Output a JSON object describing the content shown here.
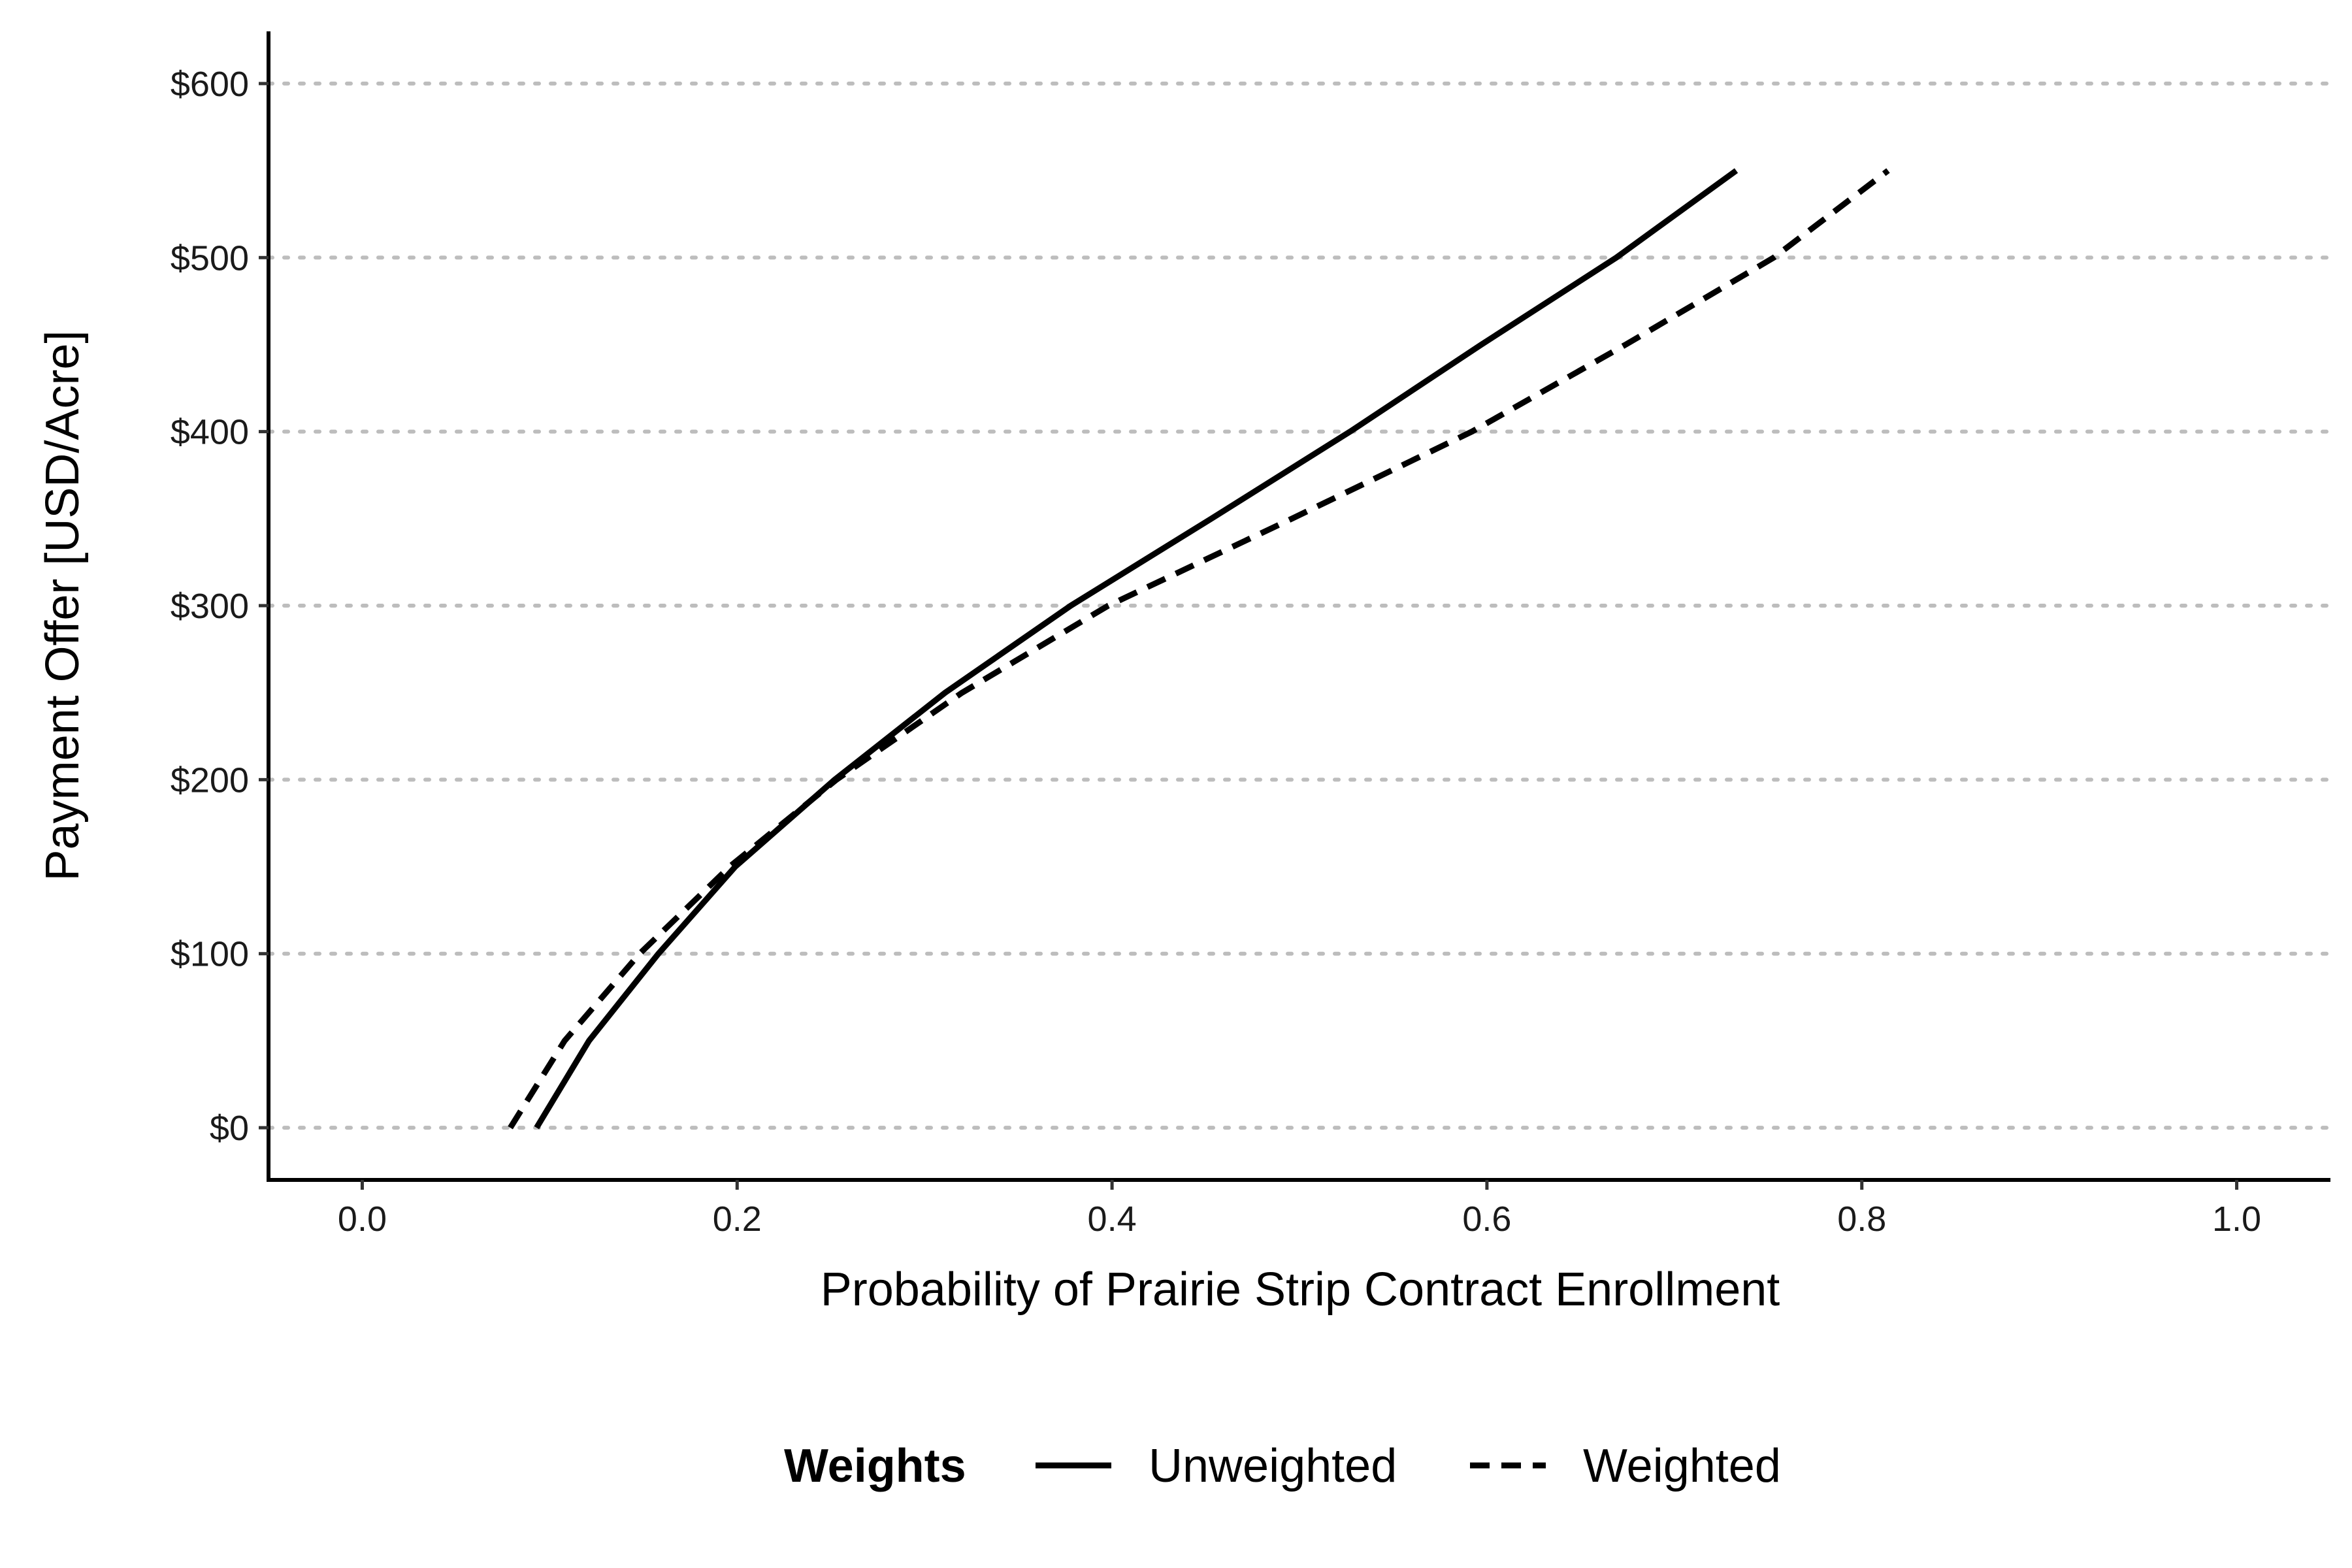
{
  "chart_data": {
    "type": "line",
    "xlabel": "Probability of Prairie Strip Contract Enrollment",
    "ylabel": "Payment Offer [USD/Acre]",
    "xlim": [
      -0.05,
      1.05
    ],
    "ylim": [
      -30,
      630
    ],
    "x_ticks": [
      0.0,
      0.2,
      0.4,
      0.6,
      0.8,
      1.0
    ],
    "x_tick_labels": [
      "0.0",
      "0.2",
      "0.4",
      "0.6",
      "0.8",
      "1.0"
    ],
    "y_ticks": [
      0,
      100,
      200,
      300,
      400,
      500,
      600
    ],
    "y_tick_labels": [
      "$0",
      "$100",
      "$200",
      "$300",
      "$400",
      "$500",
      "$600"
    ],
    "grid": "horizontal dotted",
    "legend": {
      "title": "Weights",
      "position": "bottom",
      "entries": [
        {
          "label": "Unweighted",
          "line_style": "solid"
        },
        {
          "label": "Weighted",
          "line_style": "dashed"
        }
      ]
    },
    "series": [
      {
        "name": "Unweighted",
        "line_style": "solid",
        "color": "#000000",
        "points": [
          {
            "x": 0.093,
            "y": 0
          },
          {
            "x": 0.121,
            "y": 50
          },
          {
            "x": 0.158,
            "y": 100
          },
          {
            "x": 0.199,
            "y": 150
          },
          {
            "x": 0.252,
            "y": 200
          },
          {
            "x": 0.311,
            "y": 250
          },
          {
            "x": 0.378,
            "y": 300
          },
          {
            "x": 0.453,
            "y": 350
          },
          {
            "x": 0.527,
            "y": 400
          },
          {
            "x": 0.597,
            "y": 450
          },
          {
            "x": 0.669,
            "y": 500
          },
          {
            "x": 0.733,
            "y": 550
          }
        ]
      },
      {
        "name": "Weighted",
        "line_style": "dashed",
        "color": "#000000",
        "points": [
          {
            "x": 0.079,
            "y": 0
          },
          {
            "x": 0.108,
            "y": 50
          },
          {
            "x": 0.148,
            "y": 100
          },
          {
            "x": 0.196,
            "y": 150
          },
          {
            "x": 0.253,
            "y": 200
          },
          {
            "x": 0.32,
            "y": 250
          },
          {
            "x": 0.398,
            "y": 300
          },
          {
            "x": 0.496,
            "y": 350
          },
          {
            "x": 0.592,
            "y": 400
          },
          {
            "x": 0.674,
            "y": 450
          },
          {
            "x": 0.753,
            "y": 500
          },
          {
            "x": 0.814,
            "y": 550
          }
        ]
      }
    ]
  }
}
